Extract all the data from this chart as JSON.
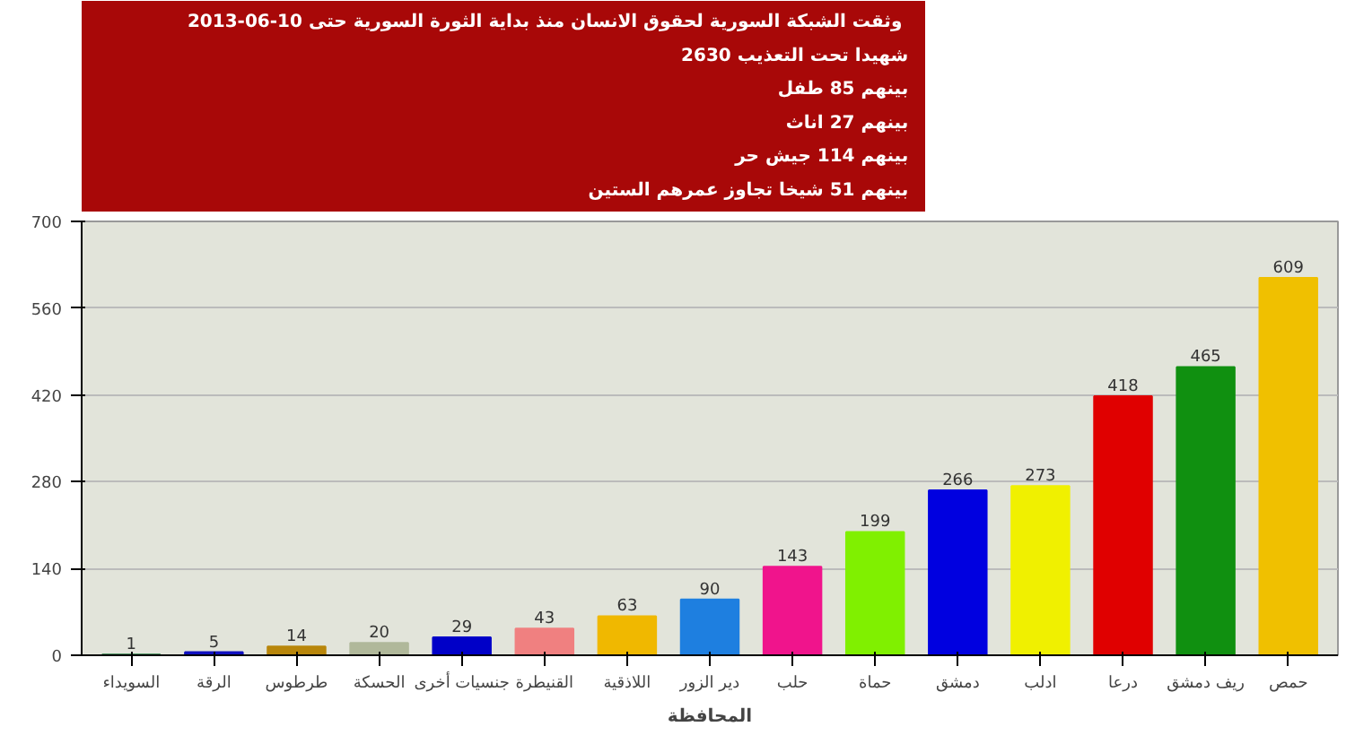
{
  "chart_data": {
    "type": "bar",
    "title": "وثقت الشبكة السورية لحقوق الانسان  منذ بداية الثورة السورية حتى 10-06-2013",
    "annotations": [
      "2630 شهيدا تحت التعذيب",
      "بينهم 85 طفل",
      "بينهم 27 اناث",
      "بينهم 114 جيش حر",
      "بينهم 51 شيخا تجاوز عمرهم الستين"
    ],
    "xlabel": "المحافظة",
    "categories": [
      "السويداء",
      "الرقة",
      "طرطوس",
      "الحسكة",
      "جنسيات أخرى",
      "القنيطرة",
      "اللاذقية",
      "دير الزور",
      "حلب",
      "حماة",
      "دمشق",
      "ادلب",
      "درعا",
      "ريف دمشق",
      "حمص"
    ],
    "values": [
      1,
      5,
      14,
      20,
      29,
      43,
      63,
      90,
      143,
      199,
      266,
      273,
      418,
      465,
      609
    ],
    "colors": [
      "#1a7a3a",
      "#1010c0",
      "#b8860b",
      "#b0b89a",
      "#0000c8",
      "#f08080",
      "#f0b800",
      "#1e7fe0",
      "#f0148c",
      "#80f000",
      "#0000e0",
      "#f0f000",
      "#e00000",
      "#109010",
      "#f0c000"
    ],
    "ylim": [
      0,
      700
    ],
    "yticks": [
      0,
      140,
      280,
      420,
      560,
      700
    ],
    "grid": "y",
    "data_labels": true
  }
}
